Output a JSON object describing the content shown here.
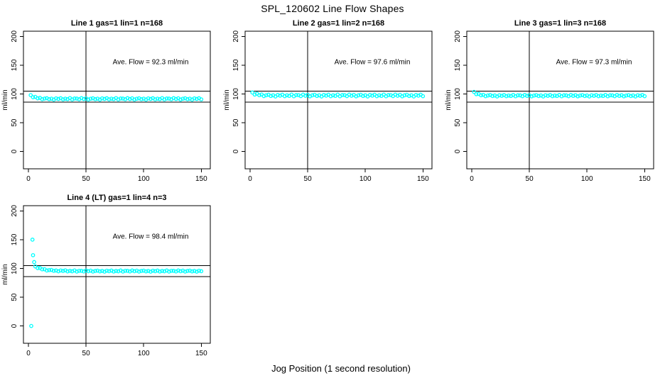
{
  "figure": {
    "title": "SPL_120602  Line Flow Shapes",
    "xlabel": "Jog Position (1 second resolution)"
  },
  "chart_data": {
    "type": "scatter",
    "title": "SPL_120602  Line Flow Shapes",
    "xlabel": "Jog Position (1 second resolution)",
    "ylabel": "ml/min",
    "marker": "open-circle",
    "marker_color": "#00ffff",
    "axis_color": "#000000",
    "grid": false,
    "legend": false,
    "x_ticks": [
      0,
      50,
      100,
      150
    ],
    "y_ticks": [
      0,
      50,
      100,
      150,
      200
    ],
    "xlim": [
      -4.3,
      157.8
    ],
    "ylim": [
      -30,
      209
    ],
    "ref_lines": {
      "vertical_x": 50,
      "horizontal_y": [
        105,
        86
      ]
    },
    "annotation_anchor": {
      "x": 106,
      "y": 152
    },
    "panels": [
      {
        "title": "Line 1 gas=1 lin=1 n=168",
        "annotation": "Ave. Flow =  92.3  ml/min",
        "ave_flow": 92.3,
        "n": 168,
        "x_start": 2,
        "x_step": 2,
        "y": [
          98.0,
          94.3,
          94.9,
          92.5,
          93.2,
          90.9,
          92.0,
          92.6,
          91.0,
          91.9,
          90.2,
          92.3,
          91.3,
          92.6,
          90.6,
          91.8,
          91.0,
          92.8,
          90.5,
          92.1,
          92.0,
          90.7,
          92.7,
          91.2,
          92.4,
          90.4,
          91.7,
          92.5,
          90.9,
          91.9,
          90.2,
          92.3,
          91.3,
          92.6,
          90.6,
          91.8,
          91.0,
          92.8,
          90.5,
          92.1,
          92.0,
          90.7,
          92.7,
          91.2,
          92.4,
          90.4,
          91.7,
          92.5,
          90.9,
          91.9,
          90.2,
          92.3,
          91.3,
          92.6,
          90.6,
          91.8,
          91.0,
          92.8,
          90.5,
          92.1,
          92.0,
          90.7,
          92.7,
          91.2,
          92.4,
          90.4,
          91.7,
          92.5,
          90.9,
          91.9,
          90.2,
          92.3,
          91.3,
          92.6,
          90.6
        ],
        "extra_points": []
      },
      {
        "title": "Line 2 gas=1 lin=2 n=168",
        "annotation": "Ave. Flow =  97.6  ml/min",
        "ave_flow": 97.6,
        "n": 168,
        "x_start": 2,
        "x_step": 2,
        "y": [
          102.5,
          99.0,
          100.6,
          97.9,
          99.1,
          96.3,
          97.8,
          98.7,
          96.5,
          97.8,
          95.6,
          98.3,
          97.0,
          98.7,
          96.1,
          97.7,
          96.6,
          99.0,
          96.0,
          98.1,
          98.0,
          96.3,
          98.9,
          96.9,
          98.5,
          95.9,
          97.6,
          98.6,
          96.5,
          97.8,
          95.6,
          98.3,
          97.0,
          98.7,
          96.1,
          97.7,
          96.6,
          99.0,
          96.0,
          98.1,
          98.0,
          96.3,
          98.9,
          96.9,
          98.5,
          95.9,
          97.6,
          98.6,
          96.5,
          97.8,
          95.6,
          98.3,
          97.0,
          98.7,
          96.1,
          97.7,
          96.6,
          99.0,
          96.0,
          98.1,
          98.0,
          96.3,
          98.9,
          96.9,
          98.5,
          95.9,
          97.6,
          98.6,
          96.5,
          97.8,
          95.6,
          98.3,
          97.0,
          98.7,
          96.1
        ],
        "extra_points": []
      },
      {
        "title": "Line 3 gas=1 lin=3 n=168",
        "annotation": "Ave. Flow =  97.3  ml/min",
        "ave_flow": 97.3,
        "n": 168,
        "x_start": 2,
        "x_step": 2,
        "y": [
          103.5,
          99.6,
          100.1,
          97.8,
          98.5,
          96.2,
          97.4,
          98.1,
          96.4,
          97.4,
          95.7,
          97.8,
          96.8,
          98.1,
          96.1,
          97.3,
          96.5,
          98.3,
          96.0,
          97.6,
          97.5,
          96.2,
          98.2,
          96.7,
          97.9,
          95.9,
          97.2,
          98.0,
          96.4,
          97.4,
          95.7,
          97.8,
          96.8,
          98.1,
          96.1,
          97.3,
          96.5,
          98.3,
          96.0,
          97.6,
          97.5,
          96.2,
          98.2,
          96.7,
          97.9,
          95.9,
          97.2,
          98.0,
          96.4,
          97.4,
          95.7,
          97.8,
          96.8,
          98.1,
          96.1,
          97.3,
          96.5,
          98.3,
          96.0,
          97.6,
          97.5,
          96.2,
          98.2,
          96.7,
          97.9,
          95.9,
          97.2,
          98.0,
          96.4,
          97.4,
          95.7,
          97.8,
          96.8,
          98.1,
          96.1
        ],
        "extra_points": []
      },
      {
        "title": "Line 4 (LT) gas=1 lin=4 n=3",
        "annotation": "Ave. Flow =  98.4  ml/min",
        "ave_flow": 98.4,
        "n": 3,
        "x_start": 6,
        "x_step": 2,
        "y": [
          103.5,
          100.6,
          100.7,
          98.5,
          98.6,
          96.4,
          97.1,
          97.4,
          95.9,
          96.4,
          95.0,
          96.5,
          95.6,
          96.6,
          94.9,
          95.8,
          95.1,
          96.5,
          94.6,
          95.9,
          95.8,
          94.8,
          96.4,
          95.2,
          96.1,
          94.5,
          95.6,
          96.2,
          94.9,
          95.7,
          94.4,
          96.0,
          95.2,
          96.3,
          94.7,
          95.6,
          95.0,
          96.4,
          94.6,
          95.9,
          95.8,
          94.8,
          96.4,
          95.2,
          96.1,
          94.5,
          95.6,
          96.2,
          94.9,
          95.7,
          94.4,
          96.0,
          95.2,
          96.3,
          94.7,
          95.6,
          95.0,
          96.4,
          94.6,
          95.9,
          95.8,
          94.8,
          96.4,
          95.2,
          96.1,
          94.5,
          95.6,
          96.2,
          94.9,
          95.7,
          94.4,
          96.0,
          95.2
        ],
        "extra_points": [
          [
            2.5,
            0
          ],
          [
            3.5,
            150
          ],
          [
            4,
            123
          ],
          [
            5,
            111
          ]
        ]
      }
    ]
  }
}
